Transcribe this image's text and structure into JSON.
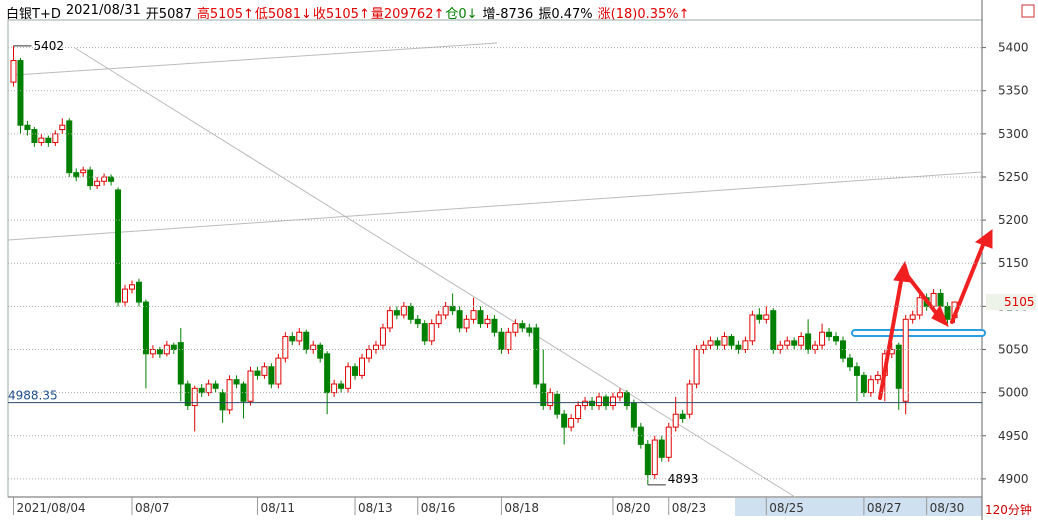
{
  "header": {
    "items": [
      {
        "text": "白银T+D",
        "color": "#000000"
      },
      {
        "text": "2021/08/31",
        "color": "#000000"
      },
      {
        "text": "开5087",
        "color": "#000000"
      },
      {
        "text": "高5105↑",
        "color": "#e00000"
      },
      {
        "text": "低5081↓",
        "color": "#e00000"
      },
      {
        "text": "收5105↑",
        "color": "#e00000"
      },
      {
        "text": "量209762↑",
        "color": "#e00000"
      },
      {
        "text": "仓0↓",
        "color": "#008000"
      },
      {
        "text": "增-8736",
        "color": "#000000"
      },
      {
        "text": "振0.47%",
        "color": "#000000"
      },
      {
        "text": "涨(18)0.35%↑",
        "color": "#e00000"
      }
    ]
  },
  "chart_data": {
    "type": "candlestick",
    "period": "120分钟",
    "up_color": "#e00000",
    "down_color": "#008000",
    "ylim": [
      4879,
      5432
    ],
    "yticks": [
      4900,
      4950,
      5000,
      5050,
      5100,
      5150,
      5200,
      5250,
      5300,
      5350,
      5400
    ],
    "grid": true,
    "high_mark": 5402,
    "low_mark": 4893,
    "hline": 4988.35,
    "last_price": 5105,
    "categories": [
      "2021/08/04",
      null,
      null,
      null,
      null,
      null,
      null,
      null,
      null,
      null,
      null,
      null,
      null,
      null,
      null,
      null,
      null,
      "08/07",
      null,
      null,
      null,
      null,
      null,
      null,
      null,
      null,
      null,
      null,
      null,
      null,
      null,
      null,
      null,
      null,
      null,
      "08/11",
      null,
      null,
      null,
      null,
      null,
      null,
      null,
      null,
      null,
      null,
      null,
      null,
      null,
      "08/13",
      null,
      null,
      null,
      null,
      null,
      null,
      null,
      null,
      "08/16",
      null,
      null,
      null,
      null,
      null,
      null,
      null,
      null,
      null,
      null,
      null,
      "08/18",
      null,
      null,
      null,
      null,
      null,
      null,
      null,
      null,
      null,
      null,
      null,
      null,
      null,
      null,
      null,
      "08/20",
      null,
      null,
      null,
      null,
      null,
      null,
      null,
      "08/23",
      null,
      null,
      null,
      null,
      null,
      null,
      null,
      null,
      null,
      null,
      null,
      null,
      null,
      "08/25",
      null,
      null,
      null,
      null,
      null,
      null,
      null,
      null,
      null,
      null,
      null,
      null,
      null,
      "08/27",
      null,
      null,
      null,
      null,
      null,
      null,
      null,
      null,
      "08/30",
      null,
      null,
      null,
      null
    ],
    "candles": [
      [
        5360,
        5402,
        5355,
        5385
      ],
      [
        5385,
        5388,
        5300,
        5310
      ],
      [
        5310,
        5315,
        5298,
        5305
      ],
      [
        5305,
        5308,
        5285,
        5290
      ],
      [
        5290,
        5300,
        5286,
        5295
      ],
      [
        5295,
        5298,
        5285,
        5290
      ],
      [
        5290,
        5304,
        5286,
        5300
      ],
      [
        5305,
        5318,
        5300,
        5310
      ],
      [
        5315,
        5318,
        5250,
        5255
      ],
      [
        5255,
        5260,
        5245,
        5250
      ],
      [
        5255,
        5262,
        5250,
        5258
      ],
      [
        5258,
        5262,
        5235,
        5240
      ],
      [
        5240,
        5250,
        5236,
        5245
      ],
      [
        5245,
        5254,
        5240,
        5250
      ],
      [
        5250,
        5253,
        5240,
        5245
      ],
      [
        5235,
        5238,
        5100,
        5105
      ],
      [
        5105,
        5125,
        5100,
        5120
      ],
      [
        5120,
        5130,
        5115,
        5125
      ],
      [
        5128,
        5132,
        5100,
        5105
      ],
      [
        5105,
        5108,
        5005,
        5045
      ],
      [
        5045,
        5055,
        5040,
        5050
      ],
      [
        5050,
        5053,
        5040,
        5045
      ],
      [
        5045,
        5060,
        5042,
        5055
      ],
      [
        5055,
        5058,
        5045,
        5050
      ],
      [
        5058,
        5075,
        4990,
        5010
      ],
      [
        5010,
        5014,
        4980,
        4985
      ],
      [
        4985,
        5008,
        4955,
        5005
      ],
      [
        5005,
        5010,
        4995,
        5000
      ],
      [
        5000,
        5015,
        4996,
        5010
      ],
      [
        5010,
        5014,
        5000,
        5005
      ],
      [
        5000,
        5004,
        4965,
        4980
      ],
      [
        4980,
        5020,
        4975,
        5015
      ],
      [
        5015,
        5020,
        5005,
        5010
      ],
      [
        5010,
        5013,
        4970,
        4990
      ],
      [
        4990,
        5030,
        4985,
        5025
      ],
      [
        5025,
        5030,
        5015,
        5020
      ],
      [
        5020,
        5035,
        5016,
        5030
      ],
      [
        5030,
        5034,
        5005,
        5010
      ],
      [
        5010,
        5045,
        5005,
        5040
      ],
      [
        5040,
        5070,
        5035,
        5065
      ],
      [
        5065,
        5070,
        5055,
        5060
      ],
      [
        5060,
        5075,
        5055,
        5070
      ],
      [
        5070,
        5073,
        5045,
        5050
      ],
      [
        5050,
        5060,
        5045,
        5055
      ],
      [
        5055,
        5058,
        5035,
        5040
      ],
      [
        5045,
        5048,
        4975,
        5000
      ],
      [
        5000,
        5015,
        4995,
        5010
      ],
      [
        5010,
        5014,
        5000,
        5005
      ],
      [
        5005,
        5035,
        5000,
        5030
      ],
      [
        5030,
        5034,
        5015,
        5020
      ],
      [
        5020,
        5045,
        5016,
        5040
      ],
      [
        5040,
        5055,
        5035,
        5050
      ],
      [
        5050,
        5060,
        5045,
        5055
      ],
      [
        5055,
        5080,
        5050,
        5075
      ],
      [
        5075,
        5100,
        5070,
        5095
      ],
      [
        5095,
        5100,
        5085,
        5090
      ],
      [
        5090,
        5105,
        5086,
        5100
      ],
      [
        5100,
        5104,
        5080,
        5085
      ],
      [
        5085,
        5090,
        5075,
        5080
      ],
      [
        5080,
        5084,
        5055,
        5060
      ],
      [
        5060,
        5085,
        5055,
        5080
      ],
      [
        5080,
        5095,
        5075,
        5090
      ],
      [
        5090,
        5105,
        5085,
        5100
      ],
      [
        5100,
        5115,
        5090,
        5095
      ],
      [
        5095,
        5100,
        5070,
        5075
      ],
      [
        5075,
        5090,
        5070,
        5085
      ],
      [
        5085,
        5110,
        5080,
        5095
      ],
      [
        5095,
        5100,
        5075,
        5080
      ],
      [
        5080,
        5090,
        5075,
        5085
      ],
      [
        5085,
        5090,
        5065,
        5070
      ],
      [
        5070,
        5075,
        5045,
        5050
      ],
      [
        5050,
        5075,
        5045,
        5070
      ],
      [
        5070,
        5085,
        5065,
        5080
      ],
      [
        5080,
        5084,
        5070,
        5075
      ],
      [
        5075,
        5080,
        5065,
        5070
      ],
      [
        5075,
        5080,
        5005,
        5010
      ],
      [
        5010,
        5050,
        4980,
        4985
      ],
      [
        4985,
        5005,
        4980,
        5000
      ],
      [
        4998,
        5002,
        4970,
        4975
      ],
      [
        4975,
        4980,
        4940,
        4960
      ],
      [
        4960,
        4975,
        4955,
        4970
      ],
      [
        4970,
        4990,
        4965,
        4985
      ],
      [
        4985,
        4995,
        4980,
        4990
      ],
      [
        4990,
        4995,
        4980,
        4985
      ],
      [
        4985,
        5000,
        4980,
        4995
      ],
      [
        4995,
        4998,
        4980,
        4985
      ],
      [
        4985,
        5000,
        4980,
        4995
      ],
      [
        4995,
        5005,
        4990,
        5000
      ],
      [
        5000,
        5003,
        4980,
        4985
      ],
      [
        4988,
        4992,
        4955,
        4960
      ],
      [
        4960,
        4965,
        4935,
        4940
      ],
      [
        4940,
        4945,
        4893,
        4905
      ],
      [
        4905,
        4950,
        4900,
        4945
      ],
      [
        4945,
        4950,
        4920,
        4925
      ],
      [
        4925,
        4965,
        4920,
        4960
      ],
      [
        4960,
        4995,
        4955,
        4975
      ],
      [
        4975,
        4980,
        4965,
        4970
      ],
      [
        4975,
        5015,
        4970,
        5010
      ],
      [
        5010,
        5055,
        5005,
        5050
      ],
      [
        5050,
        5060,
        5045,
        5055
      ],
      [
        5055,
        5065,
        5050,
        5060
      ],
      [
        5060,
        5064,
        5050,
        5055
      ],
      [
        5055,
        5070,
        5050,
        5065
      ],
      [
        5065,
        5068,
        5050,
        5055
      ],
      [
        5055,
        5060,
        5045,
        5050
      ],
      [
        5050,
        5065,
        5046,
        5060
      ],
      [
        5060,
        5095,
        5055,
        5090
      ],
      [
        5090,
        5098,
        5080,
        5085
      ],
      [
        5085,
        5100,
        5080,
        5090
      ],
      [
        5095,
        5098,
        5045,
        5050
      ],
      [
        5050,
        5060,
        5045,
        5055
      ],
      [
        5055,
        5065,
        5050,
        5060
      ],
      [
        5060,
        5064,
        5050,
        5055
      ],
      [
        5055,
        5070,
        5050,
        5065
      ],
      [
        5068,
        5085,
        5045,
        5050
      ],
      [
        5050,
        5060,
        5045,
        5055
      ],
      [
        5055,
        5080,
        5050,
        5070
      ],
      [
        5070,
        5075,
        5060,
        5065
      ],
      [
        5065,
        5070,
        5055,
        5060
      ],
      [
        5060,
        5065,
        5035,
        5040
      ],
      [
        5040,
        5045,
        5025,
        5030
      ],
      [
        5030,
        5035,
        4990,
        5020
      ],
      [
        5020,
        5024,
        4995,
        5000
      ],
      [
        5000,
        5020,
        4995,
        5015
      ],
      [
        5015,
        5025,
        5010,
        5020
      ],
      [
        5020,
        5050,
        4990,
        5045
      ],
      [
        5045,
        5058,
        5040,
        5050
      ],
      [
        5055,
        5058,
        4980,
        5005
      ],
      [
        4990,
        5090,
        4975,
        5085
      ],
      [
        5085,
        5095,
        5080,
        5090
      ],
      [
        5090,
        5115,
        5085,
        5110
      ],
      [
        5110,
        5115,
        5095,
        5100
      ],
      [
        5100,
        5120,
        5095,
        5115
      ],
      [
        5115,
        5120,
        5095,
        5100
      ],
      [
        5100,
        5105,
        5080,
        5085
      ],
      [
        5087,
        5105,
        5081,
        5105
      ]
    ]
  }
}
